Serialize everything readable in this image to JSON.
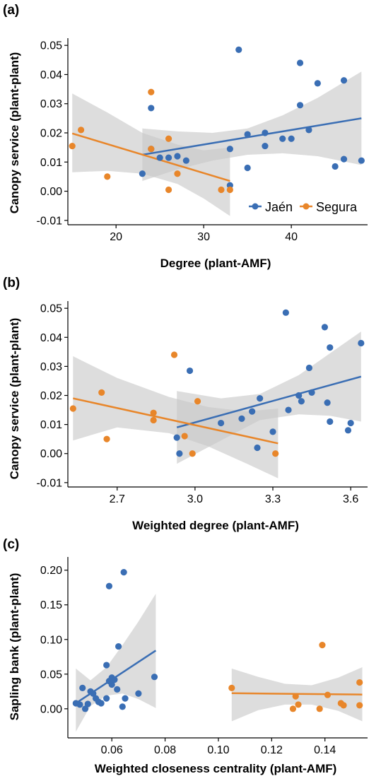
{
  "colors": {
    "jaen": "#3a6eb4",
    "segura": "#e8862a",
    "band": "#c8c8c8"
  },
  "chart_data": [
    {
      "label": "(a)",
      "type": "scatter",
      "xlabel": "Degree (plant-AMF)",
      "ylabel": "Canopy service (plant-plant)",
      "xlim": [
        14.5,
        48.7
      ],
      "ylim": [
        -0.0115,
        0.0515
      ],
      "xticks": [
        20,
        30,
        40
      ],
      "yticks": [
        -0.01,
        0.0,
        0.01,
        0.02,
        0.03,
        0.04,
        0.05
      ],
      "ytick_labels": [
        "-0.01",
        "0.00",
        "0.01",
        "0.02",
        "0.03",
        "0.04",
        "0.05"
      ],
      "xtick_labels": [
        "20",
        "30",
        "40"
      ],
      "legend": {
        "position": "bottom-right",
        "entries": [
          "Jaén",
          "Segura"
        ]
      },
      "series": [
        {
          "name": "Jaén",
          "color_key": "jaen",
          "points": [
            [
              23,
              0.006
            ],
            [
              24,
              0.0285
            ],
            [
              24,
              0.0145
            ],
            [
              25,
              0.0115
            ],
            [
              26,
              0.0115
            ],
            [
              27,
              0.012
            ],
            [
              28,
              0.0105
            ],
            [
              33,
              0.0145
            ],
            [
              33,
              0.002
            ],
            [
              34,
              0.0485
            ],
            [
              35,
              0.008
            ],
            [
              35,
              0.0195
            ],
            [
              37,
              0.0155
            ],
            [
              37,
              0.02
            ],
            [
              39,
              0.018
            ],
            [
              40,
              0.018
            ],
            [
              41,
              0.044
            ],
            [
              41,
              0.0295
            ],
            [
              42,
              0.021
            ],
            [
              43,
              0.037
            ],
            [
              45,
              0.0085
            ],
            [
              46,
              0.011
            ],
            [
              46,
              0.038
            ],
            [
              48,
              0.0105
            ]
          ],
          "fit": {
            "x": [
              23,
              48
            ],
            "y": [
              0.0125,
              0.025
            ]
          },
          "band": {
            "x": [
              23,
              27,
              31,
              35,
              39,
              43,
              48
            ],
            "lower": [
              0.0035,
              0.0075,
              0.0105,
              0.0125,
              0.013,
              0.012,
              0.009
            ],
            "upper": [
              0.0215,
              0.0205,
              0.02,
              0.0215,
              0.026,
              0.032,
              0.041
            ]
          }
        },
        {
          "name": "Segura",
          "color_key": "segura",
          "points": [
            [
              15,
              0.0155
            ],
            [
              16,
              0.021
            ],
            [
              19,
              0.005
            ],
            [
              24,
              0.034
            ],
            [
              24,
              0.0145
            ],
            [
              26,
              0.0005
            ],
            [
              26,
              0.018
            ],
            [
              27,
              0.006
            ],
            [
              32,
              0.0005
            ],
            [
              33,
              0.0005
            ]
          ],
          "fit": {
            "x": [
              15,
              33
            ],
            "y": [
              0.0198,
              0.0035
            ]
          },
          "band": {
            "x": [
              15,
              19,
              23,
              27,
              30,
              33
            ],
            "lower": [
              0.0065,
              0.007,
              0.006,
              0.0025,
              -0.0025,
              -0.0085
            ],
            "upper": [
              0.0335,
              0.027,
              0.02,
              0.016,
              0.014,
              0.015
            ]
          }
        }
      ]
    },
    {
      "label": "(b)",
      "type": "scatter",
      "xlabel": "Weighted degree (plant-AMF)",
      "ylabel": "Canopy service (plant-plant)",
      "xlim": [
        2.51,
        3.665
      ],
      "ylim": [
        -0.0115,
        0.0515
      ],
      "xticks": [
        2.7,
        3.0,
        3.3,
        3.6
      ],
      "xtick_labels": [
        "2.7",
        "3.0",
        "3.3",
        "3.6"
      ],
      "yticks": [
        -0.01,
        0.0,
        0.01,
        0.02,
        0.03,
        0.04,
        0.05
      ],
      "ytick_labels": [
        "-0.01",
        "0.00",
        "0.01",
        "0.02",
        "0.03",
        "0.04",
        "0.05"
      ],
      "series": [
        {
          "name": "Jaén",
          "color_key": "jaen",
          "points": [
            [
              2.93,
              0.0055
            ],
            [
              2.94,
              0.0
            ],
            [
              2.98,
              0.0285
            ],
            [
              3.1,
              0.0105
            ],
            [
              3.18,
              0.012
            ],
            [
              3.22,
              0.0145
            ],
            [
              3.25,
              0.019
            ],
            [
              3.24,
              0.002
            ],
            [
              3.3,
              0.0075
            ],
            [
              3.35,
              0.0485
            ],
            [
              3.36,
              0.015
            ],
            [
              3.4,
              0.02
            ],
            [
              3.41,
              0.018
            ],
            [
              3.44,
              0.0295
            ],
            [
              3.45,
              0.021
            ],
            [
              3.5,
              0.0435
            ],
            [
              3.51,
              0.0175
            ],
            [
              3.52,
              0.0365
            ],
            [
              3.52,
              0.011
            ],
            [
              3.59,
              0.008
            ],
            [
              3.6,
              0.0105
            ],
            [
              3.64,
              0.038
            ]
          ],
          "fit": {
            "x": [
              2.93,
              3.64
            ],
            "y": [
              0.009,
              0.0265
            ]
          },
          "band": {
            "x": [
              2.93,
              3.1,
              3.25,
              3.4,
              3.52,
              3.64
            ],
            "lower": [
              -0.0035,
              0.0045,
              0.0115,
              0.0135,
              0.013,
              0.011
            ],
            "upper": [
              0.0215,
              0.019,
              0.0205,
              0.027,
              0.0345,
              0.042
            ]
          }
        },
        {
          "name": "Segura",
          "color_key": "segura",
          "points": [
            [
              2.53,
              0.0155
            ],
            [
              2.64,
              0.021
            ],
            [
              2.66,
              0.005
            ],
            [
              2.84,
              0.014
            ],
            [
              2.84,
              0.0115
            ],
            [
              2.92,
              0.034
            ],
            [
              2.96,
              0.006
            ],
            [
              2.99,
              0.0
            ],
            [
              3.01,
              0.018
            ],
            [
              3.31,
              0.0
            ]
          ],
          "fit": {
            "x": [
              2.53,
              3.32
            ],
            "y": [
              0.019,
              0.0035
            ]
          },
          "band": {
            "x": [
              2.53,
              2.7,
              2.9,
              3.05,
              3.2,
              3.32
            ],
            "lower": [
              0.0045,
              0.009,
              0.007,
              0.0025,
              -0.0035,
              -0.0085
            ],
            "upper": [
              0.0335,
              0.026,
              0.0195,
              0.016,
              0.0145,
              0.0155
            ]
          }
        }
      ]
    },
    {
      "label": "(c)",
      "type": "scatter",
      "xlabel": "Weighted closeness centrality (plant-AMF)",
      "ylabel": "Sapling bank (plant-plant)",
      "xlim": [
        0.0435,
        0.156
      ],
      "ylim": [
        -0.042,
        0.215
      ],
      "xticks": [
        0.06,
        0.08,
        0.1,
        0.12,
        0.14
      ],
      "xtick_labels": [
        "0.06",
        "0.08",
        "0.10",
        "0.12",
        "0.14"
      ],
      "yticks": [
        0.0,
        0.05,
        0.1,
        0.15,
        0.2
      ],
      "ytick_labels": [
        "0.00",
        "0.05",
        "0.10",
        "0.15",
        "0.20"
      ],
      "series": [
        {
          "name": "Jaén",
          "color_key": "jaen",
          "points": [
            [
              0.0465,
              0.008
            ],
            [
              0.048,
              0.006
            ],
            [
              0.049,
              0.03
            ],
            [
              0.05,
              0.0
            ],
            [
              0.051,
              0.007
            ],
            [
              0.052,
              0.025
            ],
            [
              0.053,
              0.022
            ],
            [
              0.054,
              0.015
            ],
            [
              0.055,
              0.01
            ],
            [
              0.056,
              0.008
            ],
            [
              0.058,
              0.015
            ],
            [
              0.058,
              0.063
            ],
            [
              0.059,
              0.04
            ],
            [
              0.06,
              0.045
            ],
            [
              0.06,
              0.035
            ],
            [
              0.059,
              0.177
            ],
            [
              0.061,
              0.042
            ],
            [
              0.062,
              0.028
            ],
            [
              0.0625,
              0.09
            ],
            [
              0.064,
              0.003
            ],
            [
              0.0645,
              0.197
            ],
            [
              0.065,
              0.015
            ],
            [
              0.07,
              0.022
            ],
            [
              0.076,
              0.046
            ]
          ],
          "fit": {
            "x": [
              0.0465,
              0.0765
            ],
            "y": [
              0.008,
              0.084
            ]
          },
          "band": {
            "x": [
              0.0465,
              0.052,
              0.058,
              0.064,
              0.07,
              0.0765
            ],
            "lower": [
              -0.033,
              0.004,
              0.019,
              0.022,
              0.014,
              0.001
            ],
            "upper": [
              0.058,
              0.041,
              0.06,
              0.092,
              0.126,
              0.166
            ]
          }
        },
        {
          "name": "Segura",
          "color_key": "segura",
          "points": [
            [
              0.105,
              0.03
            ],
            [
              0.128,
              0.0
            ],
            [
              0.129,
              0.018
            ],
            [
              0.13,
              0.006
            ],
            [
              0.138,
              0.0
            ],
            [
              0.139,
              0.092
            ],
            [
              0.141,
              0.02
            ],
            [
              0.146,
              0.008
            ],
            [
              0.147,
              0.005
            ],
            [
              0.153,
              0.038
            ],
            [
              0.153,
              0.005
            ]
          ],
          "fit": {
            "x": [
              0.105,
              0.154
            ],
            "y": [
              0.0225,
              0.0205
            ]
          },
          "band": {
            "x": [
              0.105,
              0.115,
              0.125,
              0.135,
              0.145,
              0.154
            ],
            "lower": [
              -0.018,
              -0.002,
              0.006,
              0.006,
              -0.003,
              -0.018
            ],
            "upper": [
              0.058,
              0.046,
              0.036,
              0.034,
              0.045,
              0.06
            ]
          }
        }
      ]
    }
  ]
}
